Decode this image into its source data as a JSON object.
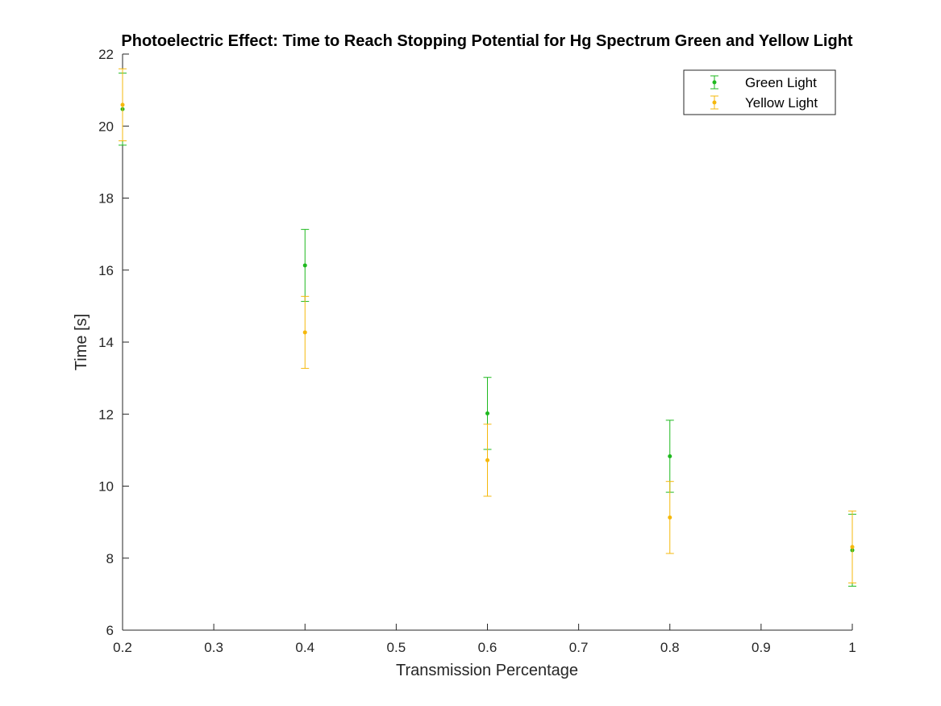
{
  "chart_data": {
    "type": "scatter",
    "title": "Photoelectric Effect: Time to Reach Stopping Potential for Hg Spectrum Green and Yellow Light",
    "xlabel": "Transmission Percentage",
    "ylabel": "Time [s]",
    "xlim": [
      0.2,
      1.0
    ],
    "ylim": [
      6,
      22
    ],
    "xticks": [
      0.2,
      0.3,
      0.4,
      0.5,
      0.6,
      0.7,
      0.8,
      0.9,
      1.0
    ],
    "xtick_labels": [
      "0.2",
      "0.3",
      "0.4",
      "0.5",
      "0.6",
      "0.7",
      "0.8",
      "0.9",
      "1"
    ],
    "yticks": [
      6,
      8,
      10,
      12,
      14,
      16,
      18,
      20,
      22
    ],
    "ytick_labels": [
      "6",
      "8",
      "10",
      "12",
      "14",
      "16",
      "18",
      "20",
      "22"
    ],
    "grid": false,
    "legend_position": "top-right",
    "error_bars": true,
    "error": 1.0,
    "series": [
      {
        "name": "Green Light",
        "color": "#1fb91f",
        "x": [
          0.2,
          0.4,
          0.6,
          0.8,
          1.0
        ],
        "y": [
          20.47,
          16.13,
          12.02,
          10.83,
          8.22
        ]
      },
      {
        "name": "Yellow Light",
        "color": "#f5b80c",
        "x": [
          0.2,
          0.4,
          0.6,
          0.8,
          1.0
        ],
        "y": [
          20.59,
          14.27,
          10.72,
          9.13,
          8.31
        ]
      }
    ]
  }
}
